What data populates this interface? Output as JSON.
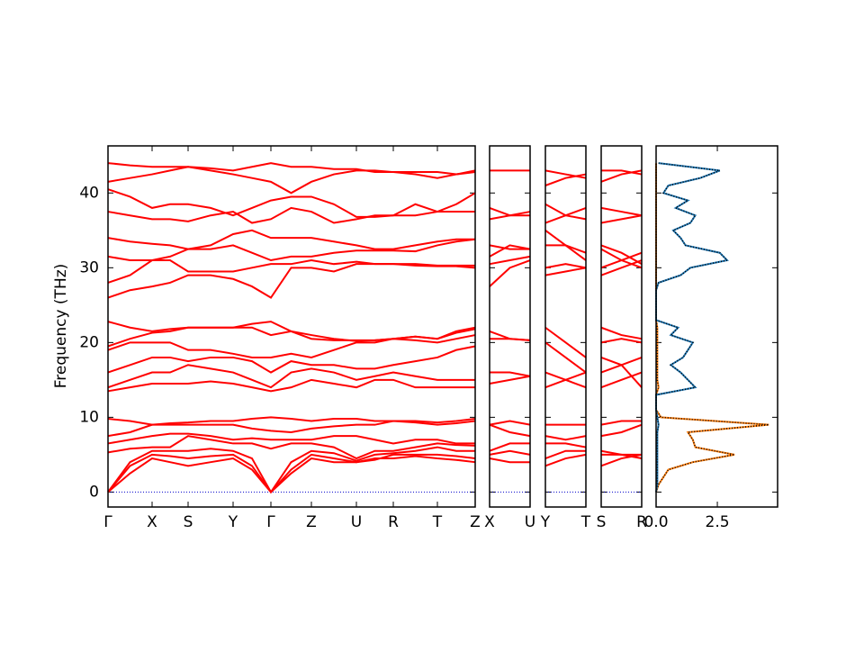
{
  "chart_data": [
    {
      "type": "bands",
      "y_label": "Frequency (THz)",
      "color": "#ff0000",
      "zero_line": true,
      "show_ytick_labels": true,
      "x": [
        0,
        24.5,
        49,
        69,
        89,
        114,
        139,
        160,
        181,
        203.5,
        226,
        251,
        276,
        296.5,
        317,
        341.5,
        366,
        387,
        408
      ],
      "xlim": [
        0,
        408
      ],
      "xticks": [
        {
          "value": 0,
          "label": "Γ"
        },
        {
          "value": 49,
          "label": "X"
        },
        {
          "value": 89,
          "label": "S"
        },
        {
          "value": 139,
          "label": "Y"
        },
        {
          "value": 181,
          "label": "Γ"
        },
        {
          "value": 226,
          "label": "Z"
        },
        {
          "value": 276,
          "label": "U"
        },
        {
          "value": 317,
          "label": "R"
        },
        {
          "value": 366,
          "label": "T"
        },
        {
          "value": 408,
          "label": "Z"
        }
      ],
      "ylim": [
        -2,
        46.3
      ],
      "yticks": [
        0,
        10,
        20,
        30,
        40
      ],
      "series": [
        {
          "values": [
            0,
            2.5,
            4.5,
            4,
            3.5,
            4,
            4.5,
            3,
            0,
            2.5,
            4.5,
            4,
            4,
            4.5,
            4.5,
            4.8,
            4.5,
            4.3,
            4
          ]
        },
        {
          "values": [
            0,
            3.5,
            5,
            4.8,
            4.5,
            4.8,
            5,
            3.5,
            0,
            3,
            5,
            4.5,
            4,
            4.3,
            5,
            5,
            5,
            4.8,
            4.5
          ]
        },
        {
          "values": [
            0,
            4,
            5.5,
            5.5,
            5.5,
            5.8,
            5.5,
            4.5,
            0,
            4,
            5.5,
            5.2,
            4.2,
            5,
            5.2,
            5.5,
            6,
            5.5,
            5.5
          ]
        },
        {
          "values": [
            5.3,
            5.8,
            6,
            6,
            7.5,
            7,
            6.5,
            6.5,
            5.8,
            6.5,
            6.5,
            6,
            4.5,
            5.5,
            5.5,
            6,
            6.5,
            6.3,
            6.2
          ]
        },
        {
          "values": [
            6.5,
            7,
            7.5,
            7.8,
            7.8,
            7.5,
            7,
            7.2,
            7,
            7,
            7,
            7.5,
            7.5,
            7,
            6.5,
            7,
            7,
            6.5,
            6.5
          ]
        },
        {
          "values": [
            7.5,
            8,
            9,
            9,
            9,
            9,
            9,
            8.5,
            8.2,
            8,
            8.5,
            8.8,
            9,
            9,
            9.5,
            9.3,
            9,
            9.2,
            9.5
          ]
        },
        {
          "values": [
            9.8,
            9.5,
            9,
            9.2,
            9.3,
            9.5,
            9.5,
            9.8,
            10,
            9.8,
            9.5,
            9.8,
            9.8,
            9.5,
            9.5,
            9.5,
            9.3,
            9.5,
            9.8
          ]
        },
        {
          "values": [
            13.5,
            14,
            14.5,
            14.5,
            14.5,
            14.8,
            14.5,
            14,
            13.5,
            14,
            15,
            14.5,
            14,
            15,
            15,
            14,
            14,
            14,
            14
          ]
        },
        {
          "values": [
            14,
            15,
            16,
            16,
            17,
            16.5,
            16,
            15,
            14,
            16,
            16.5,
            16,
            15,
            15.5,
            16,
            15.5,
            15,
            15,
            15
          ]
        },
        {
          "values": [
            16,
            17,
            18,
            18,
            17.5,
            18,
            18,
            17.5,
            16,
            17.5,
            17,
            17,
            16.5,
            16.5,
            17,
            17.5,
            18,
            19,
            19.5
          ]
        },
        {
          "values": [
            19,
            20,
            20,
            20,
            19,
            19,
            18.5,
            18,
            18,
            18.5,
            18,
            19,
            20,
            20,
            20.5,
            20.3,
            20,
            20.5,
            21
          ]
        },
        {
          "values": [
            19.5,
            20.5,
            21.3,
            21.5,
            22,
            22,
            22,
            22,
            21,
            21.5,
            21,
            20.5,
            20.2,
            20.3,
            20.5,
            20.8,
            20.5,
            21.5,
            22
          ]
        },
        {
          "values": [
            22.8,
            22,
            21.5,
            21.8,
            22,
            22,
            22,
            22.5,
            22.8,
            21.5,
            20.5,
            20.3,
            20.3,
            20.3,
            20.5,
            20.8,
            20.5,
            21.3,
            21.8
          ]
        },
        {
          "values": [
            26,
            27,
            27.5,
            28,
            29,
            29,
            28.5,
            27.5,
            26,
            30,
            30,
            29.5,
            30.5,
            30.5,
            30.5,
            30.3,
            30.2,
            30.2,
            30
          ]
        },
        {
          "values": [
            28,
            29,
            31,
            31,
            29.5,
            29.5,
            29.5,
            30,
            30.5,
            30.5,
            31,
            30.5,
            30.8,
            30.5,
            30.5,
            30.5,
            30.3,
            30.3,
            30.3
          ]
        },
        {
          "values": [
            31.5,
            31,
            31,
            31.5,
            32.5,
            32.5,
            33,
            32,
            31,
            31.5,
            31.5,
            32,
            32.3,
            32.3,
            32.3,
            32.2,
            33,
            33.5,
            33.8
          ]
        },
        {
          "values": [
            34,
            33.5,
            33.2,
            33,
            32.5,
            33,
            34.5,
            35,
            34,
            34,
            34,
            33.5,
            33,
            32.5,
            32.5,
            33,
            33.5,
            33.8,
            33.8
          ]
        },
        {
          "values": [
            37.5,
            37,
            36.5,
            36.5,
            36.2,
            37,
            37.5,
            36,
            36.5,
            38,
            37.5,
            36,
            36.5,
            37,
            37,
            38.5,
            37.5,
            37.5,
            37.5
          ]
        },
        {
          "values": [
            40.5,
            39.5,
            38,
            38.5,
            38.5,
            38,
            37,
            38,
            39,
            39.5,
            39.5,
            38.5,
            36.8,
            36.8,
            37,
            37,
            37.5,
            38.5,
            40
          ]
        },
        {
          "values": [
            41.5,
            42,
            42.5,
            43,
            43.5,
            43,
            42.5,
            42,
            41.5,
            40,
            41.5,
            42.5,
            43,
            43,
            42.8,
            42.8,
            42.8,
            42.5,
            42.8
          ]
        },
        {
          "values": [
            44,
            43.7,
            43.5,
            43.5,
            43.5,
            43.3,
            43,
            43.5,
            44,
            43.5,
            43.5,
            43.2,
            43.2,
            42.8,
            42.8,
            42.5,
            42,
            42.5,
            43
          ]
        }
      ]
    },
    {
      "type": "bands",
      "color": "#ff0000",
      "zero_line": true,
      "show_ytick_labels": false,
      "x": [
        0,
        0.5,
        1
      ],
      "xlim": [
        0,
        1
      ],
      "xticks": [
        {
          "value": 0,
          "label": "X"
        },
        {
          "value": 1,
          "label": "U"
        }
      ],
      "ylim": [
        -2,
        46.3
      ],
      "yticks": [
        0,
        10,
        20,
        30,
        40
      ],
      "series": [
        {
          "values": [
            4.5,
            4,
            4
          ]
        },
        {
          "values": [
            5,
            5.5,
            5
          ]
        },
        {
          "values": [
            5.5,
            6.5,
            6.5
          ]
        },
        {
          "values": [
            9,
            8,
            7.5
          ]
        },
        {
          "values": [
            9,
            9.5,
            9
          ]
        },
        {
          "values": [
            14.5,
            15,
            15.5
          ]
        },
        {
          "values": [
            16,
            16,
            15.5
          ]
        },
        {
          "values": [
            20.5,
            20.5,
            20.3
          ]
        },
        {
          "values": [
            21.5,
            20.5,
            20.3
          ]
        },
        {
          "values": [
            27.5,
            30,
            31
          ]
        },
        {
          "values": [
            30.5,
            31,
            31.5
          ]
        },
        {
          "values": [
            31.5,
            33,
            32.5
          ]
        },
        {
          "values": [
            33,
            32.5,
            32.5
          ]
        },
        {
          "values": [
            36.5,
            37,
            37
          ]
        },
        {
          "values": [
            38,
            37,
            37.5
          ]
        },
        {
          "values": [
            43,
            43,
            43
          ]
        }
      ]
    },
    {
      "type": "bands",
      "color": "#ff0000",
      "zero_line": true,
      "show_ytick_labels": false,
      "x": [
        0,
        0.5,
        1
      ],
      "xlim": [
        0,
        1
      ],
      "xticks": [
        {
          "value": 0,
          "label": "Y"
        },
        {
          "value": 1,
          "label": "T"
        }
      ],
      "ylim": [
        -2,
        46.3
      ],
      "yticks": [
        0,
        10,
        20,
        30,
        40
      ],
      "series": [
        {
          "values": [
            3.5,
            4.5,
            5
          ]
        },
        {
          "values": [
            4.5,
            5.5,
            5.5
          ]
        },
        {
          "values": [
            6.5,
            6.5,
            6
          ]
        },
        {
          "values": [
            7.5,
            7,
            7.5
          ]
        },
        {
          "values": [
            9,
            9,
            9
          ]
        },
        {
          "values": [
            14,
            15,
            16
          ]
        },
        {
          "values": [
            16,
            15,
            14
          ]
        },
        {
          "values": [
            20,
            18,
            16
          ]
        },
        {
          "values": [
            22,
            20,
            18
          ]
        },
        {
          "values": [
            29,
            29.5,
            30
          ]
        },
        {
          "values": [
            30,
            30.5,
            30
          ]
        },
        {
          "values": [
            33,
            33,
            32
          ]
        },
        {
          "values": [
            35,
            33,
            31
          ]
        },
        {
          "values": [
            36,
            37,
            38
          ]
        },
        {
          "values": [
            38.5,
            37,
            36.5
          ]
        },
        {
          "values": [
            41,
            42,
            42.5
          ]
        },
        {
          "values": [
            43,
            42.5,
            42
          ]
        }
      ]
    },
    {
      "type": "bands",
      "color": "#ff0000",
      "zero_line": true,
      "show_ytick_labels": false,
      "x": [
        0,
        0.5,
        1
      ],
      "xlim": [
        0,
        1
      ],
      "xticks": [
        {
          "value": 0,
          "label": "S"
        },
        {
          "value": 1,
          "label": "R"
        }
      ],
      "ylim": [
        -2,
        46.3
      ],
      "yticks": [
        0,
        10,
        20,
        30,
        40
      ],
      "series": [
        {
          "values": [
            3.5,
            4.5,
            5
          ]
        },
        {
          "values": [
            5,
            5,
            5
          ]
        },
        {
          "values": [
            5.5,
            5,
            4.5
          ]
        },
        {
          "values": [
            7.5,
            8,
            9
          ]
        },
        {
          "values": [
            9,
            9.5,
            9.5
          ]
        },
        {
          "values": [
            14,
            15,
            16
          ]
        },
        {
          "values": [
            16,
            17,
            18
          ]
        },
        {
          "values": [
            18,
            17,
            14
          ]
        },
        {
          "values": [
            20,
            20.5,
            20
          ]
        },
        {
          "values": [
            22,
            21,
            20.5
          ]
        },
        {
          "values": [
            29,
            30,
            31
          ]
        },
        {
          "values": [
            30,
            31,
            32
          ]
        },
        {
          "values": [
            32.5,
            31,
            30
          ]
        },
        {
          "values": [
            33,
            32,
            30.5
          ]
        },
        {
          "values": [
            36,
            36.5,
            37
          ]
        },
        {
          "values": [
            38,
            37.5,
            37
          ]
        },
        {
          "values": [
            41.5,
            42.5,
            43
          ]
        },
        {
          "values": [
            43,
            43,
            42.5
          ]
        }
      ]
    },
    {
      "type": "dos",
      "show_ytick_labels": false,
      "y": [
        0,
        1,
        2,
        3,
        4,
        5,
        6,
        7,
        8,
        9,
        10,
        11,
        12,
        13,
        14,
        15,
        16,
        17,
        18,
        19,
        20,
        21,
        22,
        23,
        24,
        25,
        26,
        27,
        28,
        29,
        30,
        31,
        32,
        33,
        34,
        35,
        36,
        37,
        38,
        39,
        40,
        41,
        42,
        43,
        44
      ],
      "xlim": [
        0,
        4.96
      ],
      "xticks": [
        {
          "value": 0,
          "label": "0.0"
        },
        2.5
      ],
      "ylim": [
        -2,
        46.3
      ],
      "yticks": [
        0,
        10,
        20,
        30,
        40
      ],
      "series": [
        {
          "color": "#ff7f0e",
          "values": [
            0,
            0.1,
            0.3,
            0.5,
            1.5,
            3.2,
            1.6,
            1.5,
            1.3,
            4.6,
            0.2,
            0,
            0,
            0,
            0.1,
            0.05,
            0.05,
            0.05,
            0.05,
            0.05,
            0.05,
            0.05,
            0.05,
            0,
            0,
            0,
            0,
            0,
            0,
            0,
            0,
            0,
            0,
            0,
            0,
            0,
            0,
            0,
            0,
            0,
            0,
            0,
            0,
            0,
            0
          ]
        },
        {
          "color": "#1f77b4",
          "values": [
            0,
            0.05,
            0.05,
            0.05,
            0.05,
            0.05,
            0.05,
            0.05,
            0.05,
            0.1,
            0.05,
            0,
            0,
            0,
            1.6,
            1.3,
            1,
            0.6,
            1.1,
            1.3,
            1.5,
            0.6,
            0.9,
            0,
            0,
            0,
            0,
            0,
            0.1,
            1,
            1.4,
            2.9,
            2.6,
            1.2,
            1,
            0.7,
            1.4,
            1.6,
            0.8,
            1.3,
            0.3,
            0.5,
            1.8,
            2.6,
            0.1
          ]
        }
      ]
    }
  ]
}
